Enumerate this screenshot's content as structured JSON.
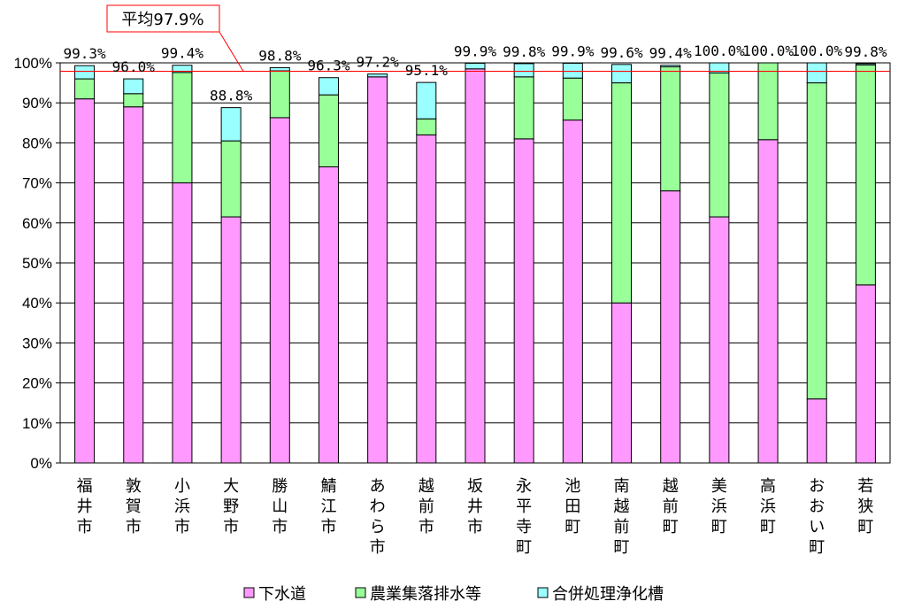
{
  "chart_data": {
    "type": "bar",
    "stacked": true,
    "categories": [
      "福井市",
      "敦賀市",
      "小浜市",
      "大野市",
      "勝山市",
      "鯖江市",
      "あわら市",
      "越前市",
      "坂井市",
      "永平寺町",
      "池田町",
      "南越前町",
      "越前町",
      "美浜町",
      "高浜町",
      "おおい町",
      "若狭町"
    ],
    "series": [
      {
        "name": "下水道",
        "color": "#ff99ff",
        "values": [
          91.0,
          89.0,
          70.0,
          61.5,
          86.3,
          74.0,
          96.5,
          82.0,
          98.5,
          81.0,
          85.7,
          40.0,
          68.0,
          61.5,
          80.8,
          16.0,
          44.5
        ]
      },
      {
        "name": "農業集落排水等",
        "color": "#99ff99",
        "values": [
          5.0,
          3.3,
          27.6,
          19.0,
          11.7,
          18.0,
          0.0,
          4.0,
          0.0,
          15.5,
          10.5,
          55.0,
          31.0,
          36.0,
          19.2,
          79.0,
          55.0
        ]
      },
      {
        "name": "合併処理浄化槽",
        "color": "#99ffff",
        "values": [
          3.3,
          3.7,
          1.8,
          8.3,
          0.8,
          4.3,
          0.7,
          9.1,
          1.4,
          3.3,
          3.7,
          4.6,
          0.4,
          2.5,
          0.0,
          5.0,
          0.3
        ]
      }
    ],
    "totals": [
      "99.3%",
      "96.0%",
      "99.4%",
      "88.8%",
      "98.8%",
      "96.3%",
      "97.2%",
      "95.1%",
      "99.9%",
      "99.8%",
      "99.9%",
      "99.6%",
      "99.4%",
      "100.0%",
      "100.0%",
      "100.0%",
      "99.8%"
    ],
    "average": {
      "label": "平均97.9%",
      "value": 97.9,
      "color": "#ff0000"
    },
    "yticks": [
      "0%",
      "10%",
      "20%",
      "30%",
      "40%",
      "50%",
      "60%",
      "70%",
      "80%",
      "90%",
      "100%"
    ],
    "ylim": [
      0,
      100
    ],
    "grid": true,
    "legend_position": "bottom"
  }
}
